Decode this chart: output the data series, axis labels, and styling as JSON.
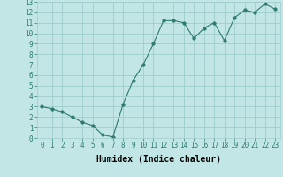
{
  "xlabel": "Humidex (Indice chaleur)",
  "x": [
    0,
    1,
    2,
    3,
    4,
    5,
    6,
    7,
    8,
    9,
    10,
    11,
    12,
    13,
    14,
    15,
    16,
    17,
    18,
    19,
    20,
    21,
    22,
    23
  ],
  "y": [
    3.0,
    2.8,
    2.5,
    2.0,
    1.5,
    1.2,
    0.3,
    0.1,
    3.2,
    5.5,
    7.0,
    9.0,
    11.2,
    11.2,
    11.0,
    9.5,
    10.5,
    11.0,
    9.3,
    11.5,
    12.2,
    12.0,
    12.8,
    12.3
  ],
  "line_color": "#2d7a6e",
  "marker": "o",
  "marker_size": 2.5,
  "bg_color": "#c2e6e6",
  "grid_color": "#a0cccc",
  "ylim": [
    0,
    13
  ],
  "xlim": [
    -0.5,
    23.5
  ],
  "yticks": [
    0,
    1,
    2,
    3,
    4,
    5,
    6,
    7,
    8,
    9,
    10,
    11,
    12,
    13
  ],
  "xticks": [
    0,
    1,
    2,
    3,
    4,
    5,
    6,
    7,
    8,
    9,
    10,
    11,
    12,
    13,
    14,
    15,
    16,
    17,
    18,
    19,
    20,
    21,
    22,
    23
  ],
  "tick_fontsize": 5.5,
  "xlabel_fontsize": 7,
  "label_font": "monospace"
}
